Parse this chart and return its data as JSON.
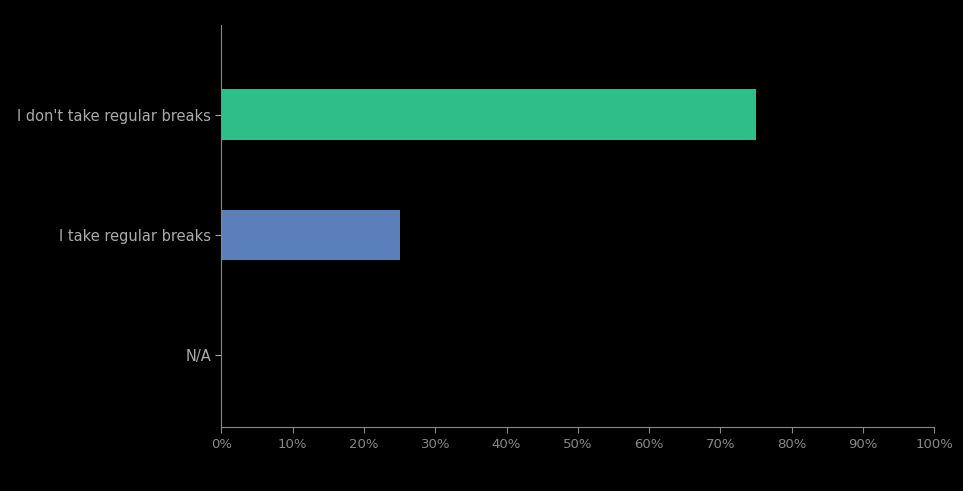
{
  "categories": [
    "I don't take regular breaks",
    "I take regular breaks",
    "N/A"
  ],
  "values": [
    75,
    25,
    0
  ],
  "bar_colors": [
    "#2dbe8a",
    "#5b7fba",
    "#000000"
  ],
  "background_color": "#000000",
  "axis_color": "#888888",
  "label_color": "#aaaaaa",
  "tick_color": "#888888",
  "xlim": [
    0,
    100
  ],
  "xticks": [
    0,
    10,
    20,
    30,
    40,
    50,
    60,
    70,
    80,
    90,
    100
  ],
  "xtick_labels": [
    "0%",
    "10%",
    "20%",
    "30%",
    "40%",
    "50%",
    "60%",
    "70%",
    "80%",
    "90%",
    "100%"
  ],
  "bar_height": 0.42,
  "label_fontsize": 10.5,
  "tick_fontsize": 9.5,
  "figsize": [
    9.63,
    4.91
  ],
  "dpi": 100
}
